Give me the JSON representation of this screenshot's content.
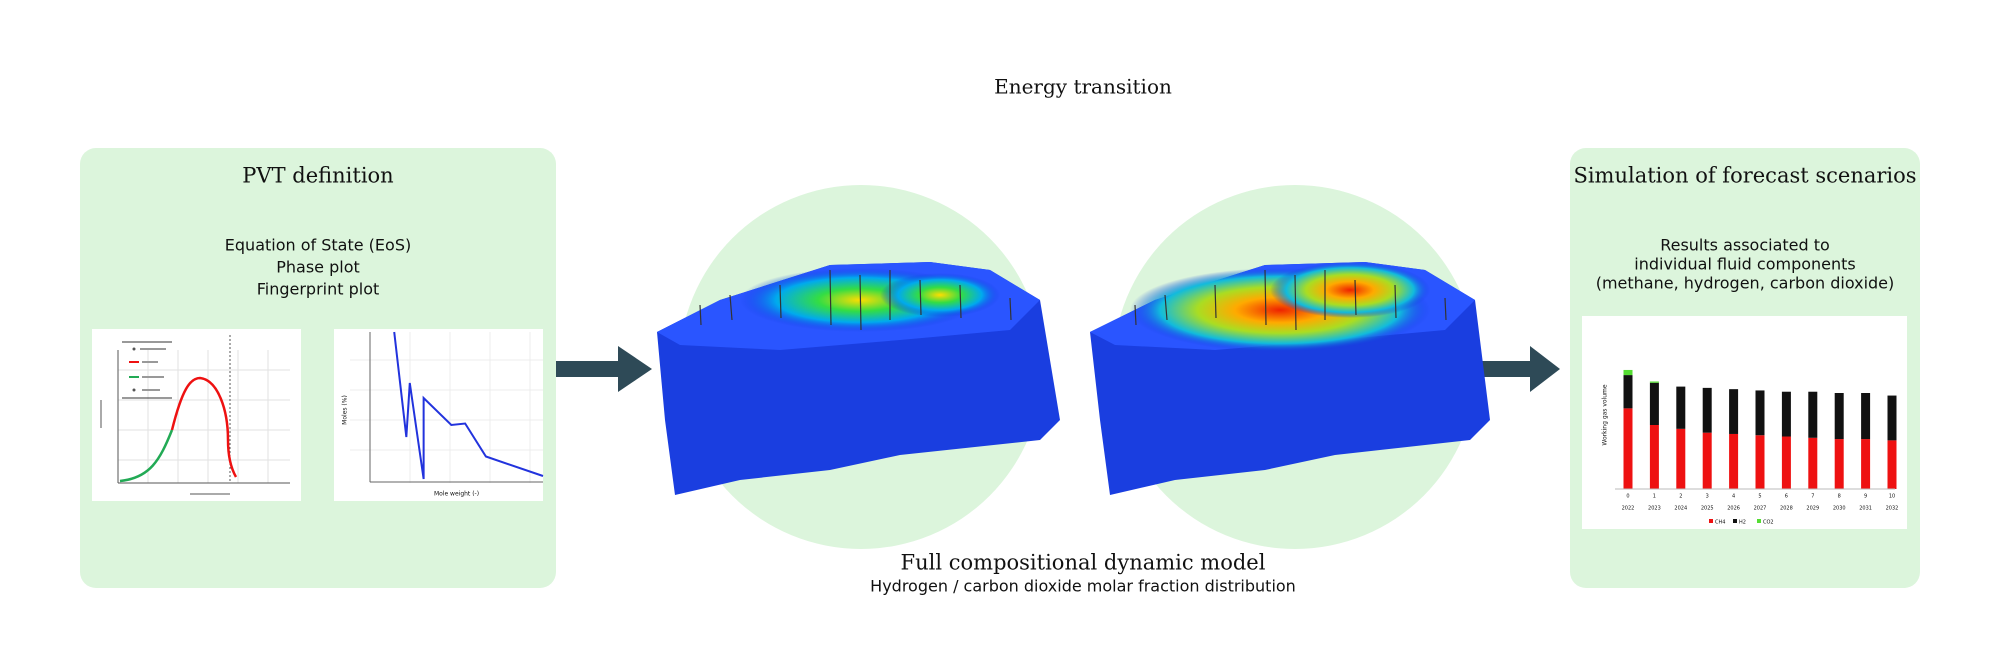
{
  "title": "Energy transition",
  "pvt_panel": {
    "title": "PVT definition",
    "items": [
      "Equation of State (EoS)",
      "Phase plot",
      "Fingerprint plot"
    ],
    "fingerprint_plot": {
      "type": "line",
      "x_label": "Mole weight (-)",
      "y_label": "Moles (%)",
      "x": [
        14,
        21,
        23,
        31,
        31,
        47,
        55,
        67,
        100
      ],
      "values": [
        100,
        30,
        66,
        2,
        56,
        38,
        39,
        17,
        4
      ],
      "color": "#2233dd",
      "xlim": [
        0,
        100
      ],
      "ylim": [
        0,
        100
      ]
    }
  },
  "model": {
    "title": "Full compositional dynamic model",
    "subtitle": "Hydrogen / carbon dioxide molar fraction distribution"
  },
  "forecast_panel": {
    "title": "Simulation of forecast scenarios",
    "description": [
      "Results associated to",
      "individual fluid components",
      "(methane, hydrogen, carbon dioxide)"
    ],
    "chart": {
      "type": "bar",
      "stacked": true,
      "y_label": "Working gas volume",
      "categories": [
        "0",
        "1",
        "2",
        "3",
        "4",
        "5",
        "6",
        "7",
        "8",
        "9",
        "10"
      ],
      "years": [
        "2022",
        "2023",
        "2024",
        "2025",
        "2026",
        "2027",
        "2028",
        "2029",
        "2030",
        "2031",
        "2032"
      ],
      "series": [
        {
          "name": "CH4",
          "color": "#ee1111",
          "values": [
            63,
            50,
            47,
            44,
            43,
            42,
            41,
            40,
            39,
            39,
            38
          ]
        },
        {
          "name": "H2",
          "color": "#111111",
          "values": [
            26,
            33,
            33,
            35,
            35,
            35,
            35,
            36,
            36,
            36,
            35
          ]
        },
        {
          "name": "CO2",
          "color": "#55dd33",
          "values": [
            4,
            1,
            0,
            0,
            0,
            0,
            0,
            0,
            0,
            0,
            0
          ]
        }
      ],
      "ylim": [
        0,
        100
      ]
    }
  }
}
